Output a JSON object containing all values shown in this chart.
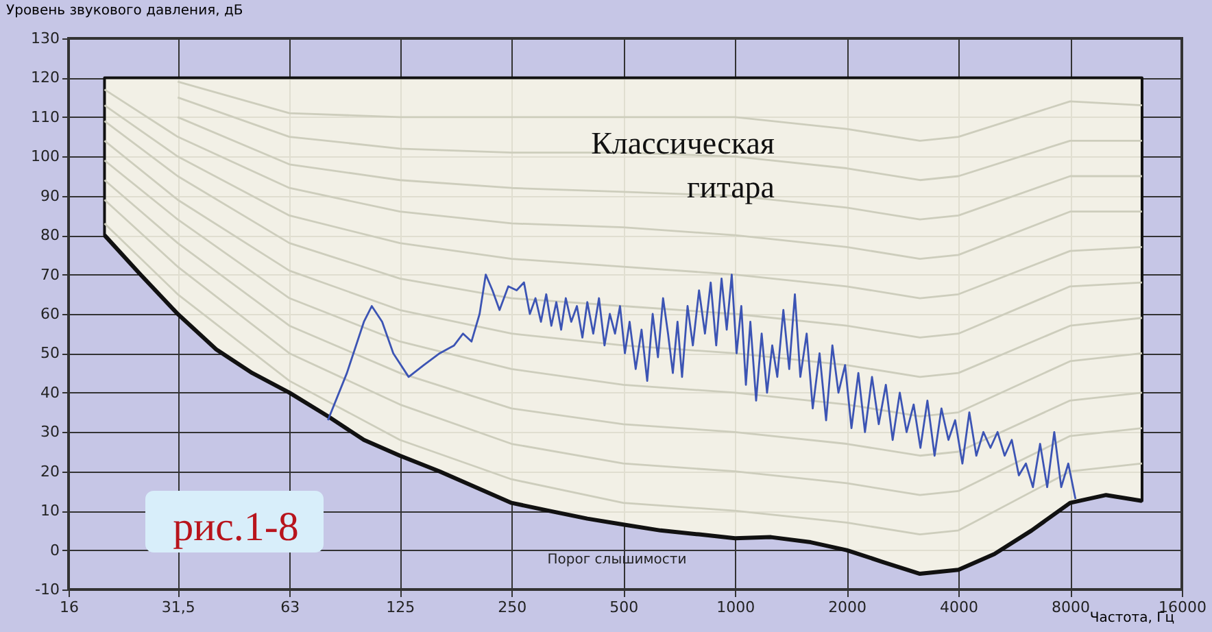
{
  "chart_data": {
    "type": "line",
    "ylabel": "Уровень звукового давления, дБ",
    "xlabel": "Частота, Гц",
    "log": "x",
    "grid": true,
    "xlim": [
      16,
      16000
    ],
    "xticks": [
      16,
      {
        "value": 31.5,
        "label": "31,5"
      },
      63,
      125,
      250,
      500,
      1000,
      2000,
      4000,
      8000,
      16000
    ],
    "ylim": [
      -10,
      130
    ],
    "yticks": [
      -10,
      0,
      10,
      20,
      30,
      40,
      50,
      60,
      70,
      80,
      90,
      100,
      110,
      120,
      130
    ],
    "annotations": [
      "Классическая гитара",
      "рис.1-8",
      "Порог слышимости"
    ],
    "series": [
      {
        "color": "#111111",
        "x": [
          20,
          25,
          31.5,
          40,
          50,
          63,
          80,
          100,
          125,
          160,
          200,
          250,
          315,
          400,
          500,
          630,
          800,
          1000,
          1250,
          1600,
          2000,
          2500,
          3150,
          4000,
          5000,
          6300,
          8000,
          10000,
          12500
        ],
        "values": [
          80,
          70,
          60,
          51,
          45,
          40,
          34,
          28,
          24,
          20,
          16,
          12,
          10,
          8,
          6.5,
          5,
          4,
          3,
          3.3,
          2,
          0,
          -3,
          -6,
          -5,
          -1,
          5,
          12,
          14,
          12.5
        ],
        "lower": [
          80,
          70,
          60,
          51,
          45,
          40,
          34,
          28,
          24,
          20,
          16,
          12,
          10,
          8,
          6.5,
          5,
          4,
          3,
          3.3,
          2,
          0,
          -3,
          -6,
          -5,
          -1,
          5,
          12,
          14,
          12.5
        ],
        "upper": [
          120,
          120,
          120,
          120,
          120,
          120,
          120,
          120,
          120,
          120,
          120,
          120,
          120,
          120,
          120,
          120,
          120,
          120,
          120,
          120,
          120,
          120,
          120,
          120,
          120,
          120,
          120,
          120,
          120
        ]
      },
      {
        "color": "#cdcdbc",
        "x": [
          20,
          31.5,
          63,
          125,
          250,
          500,
          1000,
          2000,
          3150,
          4000,
          8000,
          12500
        ],
        "values": [
          83,
          65,
          43,
          28,
          18,
          12,
          10,
          7,
          4,
          5,
          20,
          22
        ]
      },
      {
        "color": "#cdcdbc",
        "x": [
          20,
          31.5,
          63,
          125,
          250,
          500,
          1000,
          2000,
          3150,
          4000,
          8000,
          12500
        ],
        "values": [
          89,
          72,
          50,
          37,
          27,
          22,
          20,
          17,
          14,
          15,
          29,
          31
        ]
      },
      {
        "color": "#cdcdbc",
        "x": [
          20,
          31.5,
          63,
          125,
          250,
          500,
          1000,
          2000,
          3150,
          4000,
          8000,
          12500
        ],
        "values": [
          94,
          78,
          57,
          45,
          36,
          32,
          30,
          27,
          24,
          25,
          38,
          40
        ]
      },
      {
        "color": "#cdcdbc",
        "x": [
          20,
          31.5,
          63,
          125,
          250,
          500,
          1000,
          2000,
          3150,
          4000,
          8000,
          12500
        ],
        "values": [
          99,
          84,
          64,
          53,
          46,
          42,
          40,
          37,
          34,
          35,
          48,
          50
        ]
      },
      {
        "color": "#cdcdbc",
        "x": [
          20,
          31.5,
          63,
          125,
          250,
          500,
          1000,
          2000,
          3150,
          4000,
          8000,
          12500
        ],
        "values": [
          104,
          89,
          71,
          61,
          55,
          52,
          50,
          47,
          44,
          45,
          57,
          59
        ]
      },
      {
        "color": "#cdcdbc",
        "x": [
          20,
          31.5,
          63,
          125,
          250,
          500,
          1000,
          2000,
          3150,
          4000,
          8000,
          12500
        ],
        "values": [
          109,
          95,
          78,
          69,
          64,
          62,
          60,
          57,
          54,
          55,
          67,
          68
        ]
      },
      {
        "color": "#cdcdbc",
        "x": [
          20,
          31.5,
          63,
          125,
          250,
          500,
          1000,
          2000,
          3150,
          4000,
          8000,
          12500
        ],
        "values": [
          113,
          100,
          85,
          78,
          74,
          72,
          70,
          67,
          64,
          65,
          76,
          77
        ]
      },
      {
        "color": "#cdcdbc",
        "x": [
          20,
          31.5,
          63,
          125,
          250,
          500,
          1000,
          2000,
          3150,
          4000,
          8000,
          12500
        ],
        "values": [
          117,
          105,
          92,
          86,
          83,
          82,
          80,
          77,
          74,
          75,
          86,
          86
        ]
      },
      {
        "color": "#cdcdbc",
        "x": [
          31.5,
          63,
          125,
          250,
          500,
          1000,
          2000,
          3150,
          4000,
          8000,
          12500
        ],
        "values": [
          110,
          98,
          94,
          92,
          91,
          90,
          87,
          84,
          85,
          95,
          95
        ]
      },
      {
        "color": "#cdcdbc",
        "x": [
          31.5,
          63,
          125,
          250,
          500,
          1000,
          2000,
          3150,
          4000,
          8000,
          12500
        ],
        "values": [
          115,
          105,
          102,
          101,
          101,
          100,
          97,
          94,
          95,
          104,
          104
        ]
      },
      {
        "color": "#cdcdbc",
        "x": [
          31.5,
          63,
          125,
          250,
          500,
          1000,
          2000,
          3150,
          4000,
          8000,
          12500
        ],
        "values": [
          119,
          111,
          110,
          110,
          110,
          110,
          107,
          104,
          105,
          114,
          113
        ]
      },
      {
        "color": "#3c54b4",
        "x": [
          80,
          90,
          100,
          105,
          112,
          120,
          132,
          145,
          160,
          175,
          185,
          195,
          205,
          213,
          222,
          232,
          245,
          258,
          270,
          280,
          290,
          300,
          310,
          320,
          330,
          340,
          350,
          362,
          375,
          388,
          400,
          415,
          430,
          445,
          460,
          475,
          490,
          505,
          520,
          540,
          560,
          580,
          600,
          620,
          640,
          660,
          680,
          700,
          720,
          745,
          770,
          800,
          830,
          860,
          890,
          920,
          950,
          980,
          1010,
          1040,
          1070,
          1100,
          1140,
          1180,
          1220,
          1260,
          1300,
          1350,
          1400,
          1450,
          1500,
          1560,
          1620,
          1690,
          1760,
          1830,
          1900,
          1980,
          2060,
          2150,
          2240,
          2340,
          2440,
          2550,
          2660,
          2780,
          2900,
          3030,
          3160,
          3300,
          3450,
          3600,
          3760,
          3920,
          4100,
          4280,
          4470,
          4670,
          4880,
          5100,
          5330,
          5570,
          5820,
          6080,
          6350,
          6640,
          6940,
          7250,
          7570,
          7910,
          8270
        ],
        "values": [
          33,
          45,
          58,
          62,
          58,
          50,
          44,
          47,
          50,
          52,
          55,
          53,
          60,
          70,
          66,
          61,
          67,
          66,
          68,
          60,
          64,
          58,
          65,
          57,
          63,
          56,
          64,
          58,
          62,
          54,
          63,
          55,
          64,
          52,
          60,
          55,
          62,
          50,
          58,
          46,
          56,
          43,
          60,
          49,
          64,
          55,
          45,
          58,
          44,
          62,
          52,
          66,
          55,
          68,
          52,
          69,
          56,
          70,
          50,
          62,
          42,
          58,
          38,
          55,
          40,
          52,
          44,
          61,
          46,
          65,
          44,
          55,
          36,
          50,
          33,
          52,
          40,
          47,
          31,
          45,
          30,
          44,
          32,
          42,
          28,
          40,
          30,
          37,
          26,
          38,
          24,
          36,
          28,
          33,
          22,
          35,
          24,
          30,
          26,
          30,
          24,
          28,
          19,
          22,
          16,
          27,
          16,
          30,
          16,
          22,
          13
        ]
      }
    ]
  }
}
